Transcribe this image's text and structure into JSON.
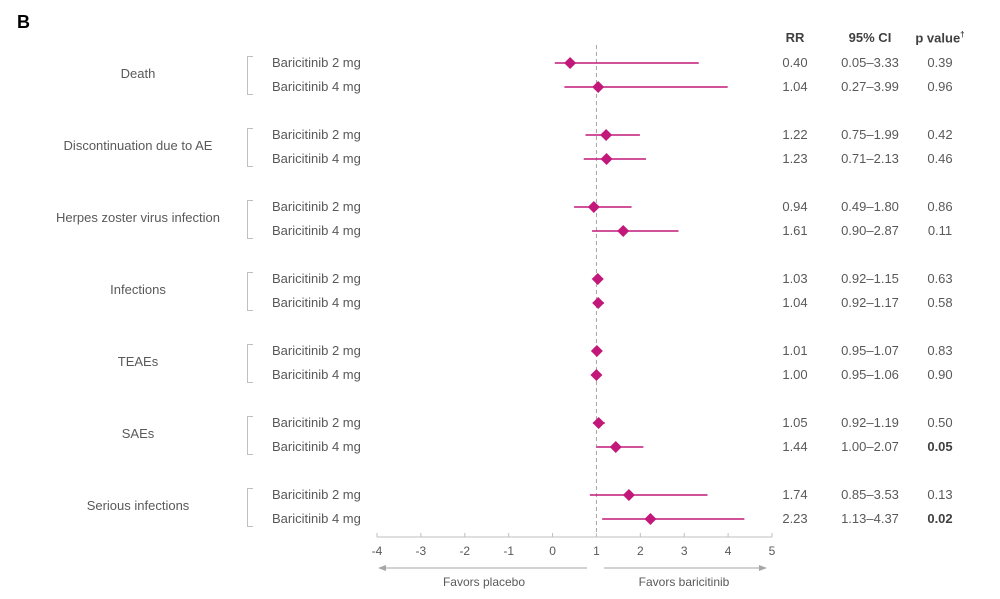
{
  "panel_label": "B",
  "table_headers": {
    "rr": "RR",
    "ci": "95% CI",
    "p": "p value",
    "p_sup": "†"
  },
  "chart_data": {
    "type": "forest",
    "xlim": [
      -4,
      5
    ],
    "xticks": [
      "-4",
      "-3",
      "-2",
      "-1",
      "0",
      "1",
      "2",
      "3",
      "4",
      "5"
    ],
    "reference_line": 1,
    "x_annotations": {
      "left": "Favors placebo",
      "right": "Favors baricitinib"
    },
    "marker_color": "#c2187a",
    "groups": [
      {
        "category": "Death",
        "rows": [
          {
            "arm": "Baricitinib 2 mg",
            "rr": 0.4,
            "lo": 0.05,
            "hi": 3.33,
            "rr_text": "0.40",
            "ci_text": "0.05–3.33",
            "p_text": "0.39",
            "p_bold": false
          },
          {
            "arm": "Baricitinib 4 mg",
            "rr": 1.04,
            "lo": 0.27,
            "hi": 3.99,
            "rr_text": "1.04",
            "ci_text": "0.27–3.99",
            "p_text": "0.96",
            "p_bold": false
          }
        ]
      },
      {
        "category": "Discontinuation due to AE",
        "rows": [
          {
            "arm": "Baricitinib 2 mg",
            "rr": 1.22,
            "lo": 0.75,
            "hi": 1.99,
            "rr_text": "1.22",
            "ci_text": "0.75–1.99",
            "p_text": "0.42",
            "p_bold": false
          },
          {
            "arm": "Baricitinib 4 mg",
            "rr": 1.23,
            "lo": 0.71,
            "hi": 2.13,
            "rr_text": "1.23",
            "ci_text": "0.71–2.13",
            "p_text": "0.46",
            "p_bold": false
          }
        ]
      },
      {
        "category": "Herpes zoster virus infection",
        "rows": [
          {
            "arm": "Baricitinib 2 mg",
            "rr": 0.94,
            "lo": 0.49,
            "hi": 1.8,
            "rr_text": "0.94",
            "ci_text": "0.49–1.80",
            "p_text": "0.86",
            "p_bold": false
          },
          {
            "arm": "Baricitinib 4 mg",
            "rr": 1.61,
            "lo": 0.9,
            "hi": 2.87,
            "rr_text": "1.61",
            "ci_text": "0.90–2.87",
            "p_text": "0.11",
            "p_bold": false
          }
        ]
      },
      {
        "category": "Infections",
        "rows": [
          {
            "arm": "Baricitinib 2 mg",
            "rr": 1.03,
            "lo": 0.92,
            "hi": 1.15,
            "rr_text": "1.03",
            "ci_text": "0.92–1.15",
            "p_text": "0.63",
            "p_bold": false
          },
          {
            "arm": "Baricitinib 4 mg",
            "rr": 1.04,
            "lo": 0.92,
            "hi": 1.17,
            "rr_text": "1.04",
            "ci_text": "0.92–1.17",
            "p_text": "0.58",
            "p_bold": false
          }
        ]
      },
      {
        "category": "TEAEs",
        "rows": [
          {
            "arm": "Baricitinib 2 mg",
            "rr": 1.01,
            "lo": 0.95,
            "hi": 1.07,
            "rr_text": "1.01",
            "ci_text": "0.95–1.07",
            "p_text": "0.83",
            "p_bold": false
          },
          {
            "arm": "Baricitinib 4 mg",
            "rr": 1.0,
            "lo": 0.95,
            "hi": 1.06,
            "rr_text": "1.00",
            "ci_text": "0.95–1.06",
            "p_text": "0.90",
            "p_bold": false
          }
        ]
      },
      {
        "category": "SAEs",
        "rows": [
          {
            "arm": "Baricitinib 2 mg",
            "rr": 1.05,
            "lo": 0.92,
            "hi": 1.19,
            "rr_text": "1.05",
            "ci_text": "0.92–1.19",
            "p_text": "0.50",
            "p_bold": false
          },
          {
            "arm": "Baricitinib 4 mg",
            "rr": 1.44,
            "lo": 1.0,
            "hi": 2.07,
            "rr_text": "1.44",
            "ci_text": "1.00–2.07",
            "p_text": "0.05",
            "p_bold": true
          }
        ]
      },
      {
        "category": "Serious infections",
        "rows": [
          {
            "arm": "Baricitinib 2 mg",
            "rr": 1.74,
            "lo": 0.85,
            "hi": 3.53,
            "rr_text": "1.74",
            "ci_text": "0.85–3.53",
            "p_text": "0.13",
            "p_bold": false
          },
          {
            "arm": "Baricitinib 4 mg",
            "rr": 2.23,
            "lo": 1.13,
            "hi": 4.37,
            "rr_text": "2.23",
            "ci_text": "1.13–4.37",
            "p_text": "0.02",
            "p_bold": true
          }
        ]
      }
    ]
  }
}
